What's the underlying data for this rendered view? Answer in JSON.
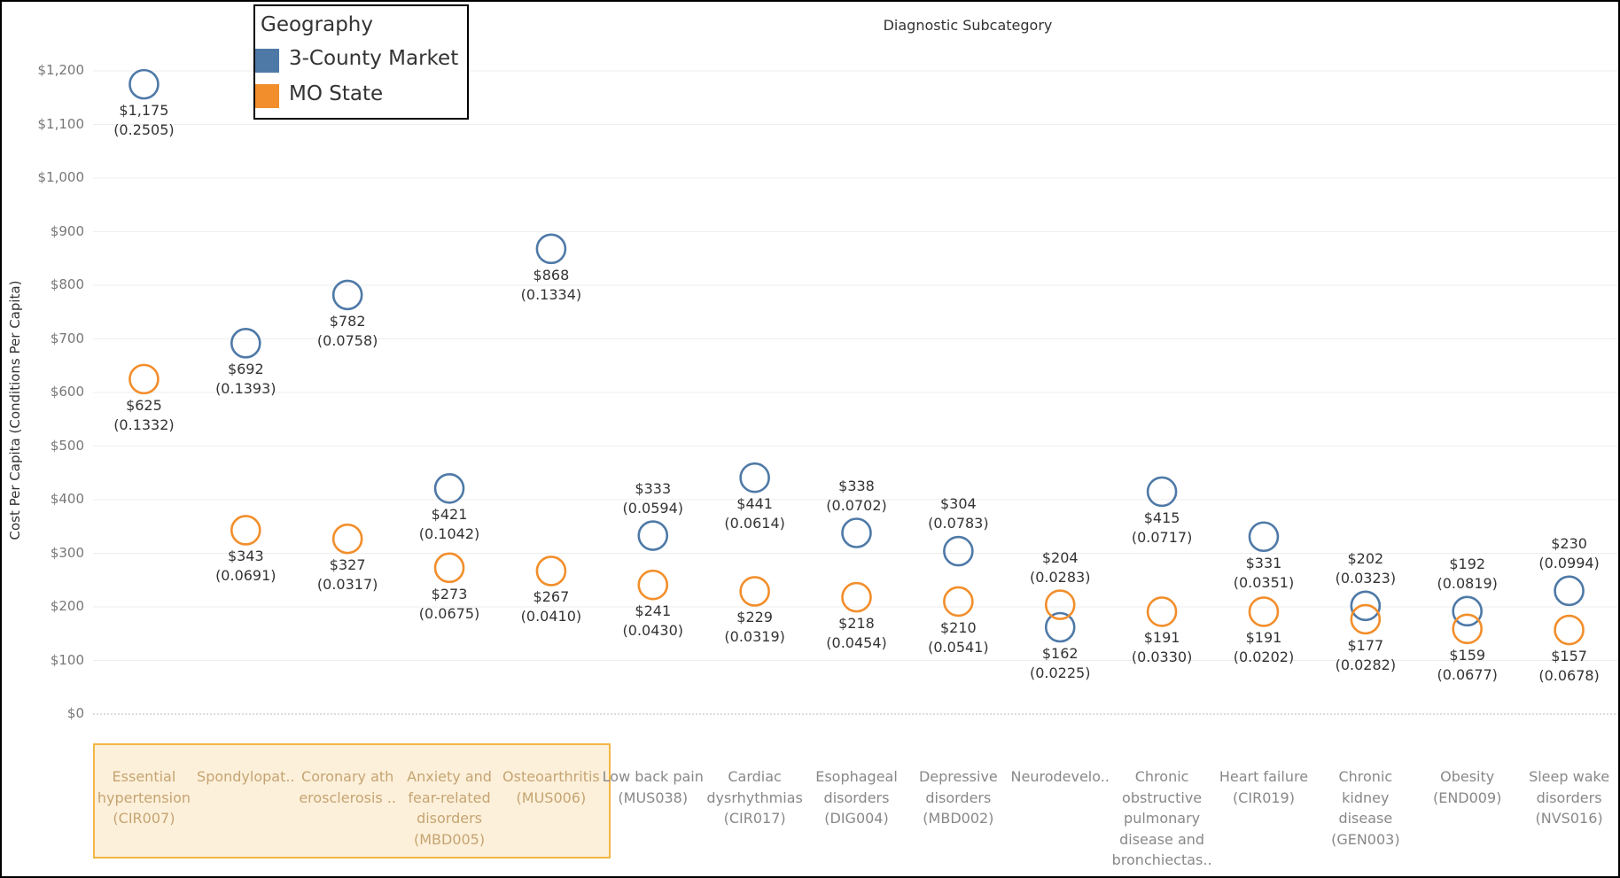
{
  "chart_data": {
    "type": "dot",
    "title": "Diagnostic Subcategory",
    "y_label": "Cost Per Capita (Conditions Per Capita)",
    "legend_title": "Geography",
    "legend": "top-left",
    "categories": [
      "Essential\nhypertension\n(CIR007)",
      "Spondylopat..",
      "Coronary ath\nerosclerosis ..",
      "Anxiety and\nfear-related\ndisorders\n(MBD005)",
      "Osteoarthritis\n(MUS006)",
      "Low back pain\n(MUS038)",
      "Cardiac\ndysrhythmias\n(CIR017)",
      "Esophageal\ndisorders\n(DIG004)",
      "Depressive\ndisorders\n(MBD002)",
      "Neurodevelo..",
      "Chronic\nobstructive\npulmonary\ndisease and\nbronchiectas..",
      "Heart failure\n(CIR019)",
      "Chronic\nkidney\ndisease\n(GEN003)",
      "Obesity\n(END009)",
      "Sleep wake\ndisorders\n(NVS016)"
    ],
    "series": [
      {
        "name": "3-County Market",
        "color": "#4e79a7",
        "values": [
          1175,
          692,
          782,
          421,
          868,
          333,
          441,
          338,
          304,
          162,
          415,
          331,
          202,
          192,
          230
        ],
        "value_labels": [
          "$1,175\n(0.2505)",
          "$692\n(0.1393)",
          "$782\n(0.0758)",
          "$421\n(0.1042)",
          "$868\n(0.1334)",
          "$333\n(0.0594)",
          "$441\n(0.0614)",
          "$338\n(0.0702)",
          "$304\n(0.0783)",
          "$162\n(0.0225)",
          "$415\n(0.0717)",
          "$331\n(0.0351)",
          "$202\n(0.0323)",
          "$192\n(0.0819)",
          "$230\n(0.0994)"
        ]
      },
      {
        "name": "MO State",
        "color": "#f28e2b",
        "values": [
          625,
          343,
          327,
          273,
          267,
          241,
          229,
          218,
          210,
          204,
          191,
          191,
          177,
          159,
          157
        ],
        "value_labels": [
          "$625\n(0.1332)",
          "$343\n(0.0691)",
          "$327\n(0.0317)",
          "$273\n(0.0675)",
          "$267\n(0.0410)",
          "$241\n(0.0430)",
          "$229\n(0.0319)",
          "$218\n(0.0454)",
          "$210\n(0.0541)",
          "$204\n(0.0283)",
          "$191\n(0.0330)",
          "$191\n(0.0202)",
          "$177\n(0.0282)",
          "$159\n(0.0677)",
          "$157\n(0.0678)"
        ]
      }
    ],
    "ylim": [
      0,
      1200
    ],
    "yticks": [
      {
        "value": 0,
        "label": "$0"
      },
      {
        "value": 100,
        "label": "$100"
      },
      {
        "value": 200,
        "label": "$200"
      },
      {
        "value": 300,
        "label": "$300"
      },
      {
        "value": 400,
        "label": "$400"
      },
      {
        "value": 500,
        "label": "$500"
      },
      {
        "value": 600,
        "label": "$600"
      },
      {
        "value": 700,
        "label": "$700"
      },
      {
        "value": 800,
        "label": "$800"
      },
      {
        "value": 900,
        "label": "$900"
      },
      {
        "value": 1000,
        "label": "$1,000"
      },
      {
        "value": 1100,
        "label": "$1,100"
      },
      {
        "value": 1200,
        "label": "$1,200"
      }
    ],
    "grid": true
  }
}
